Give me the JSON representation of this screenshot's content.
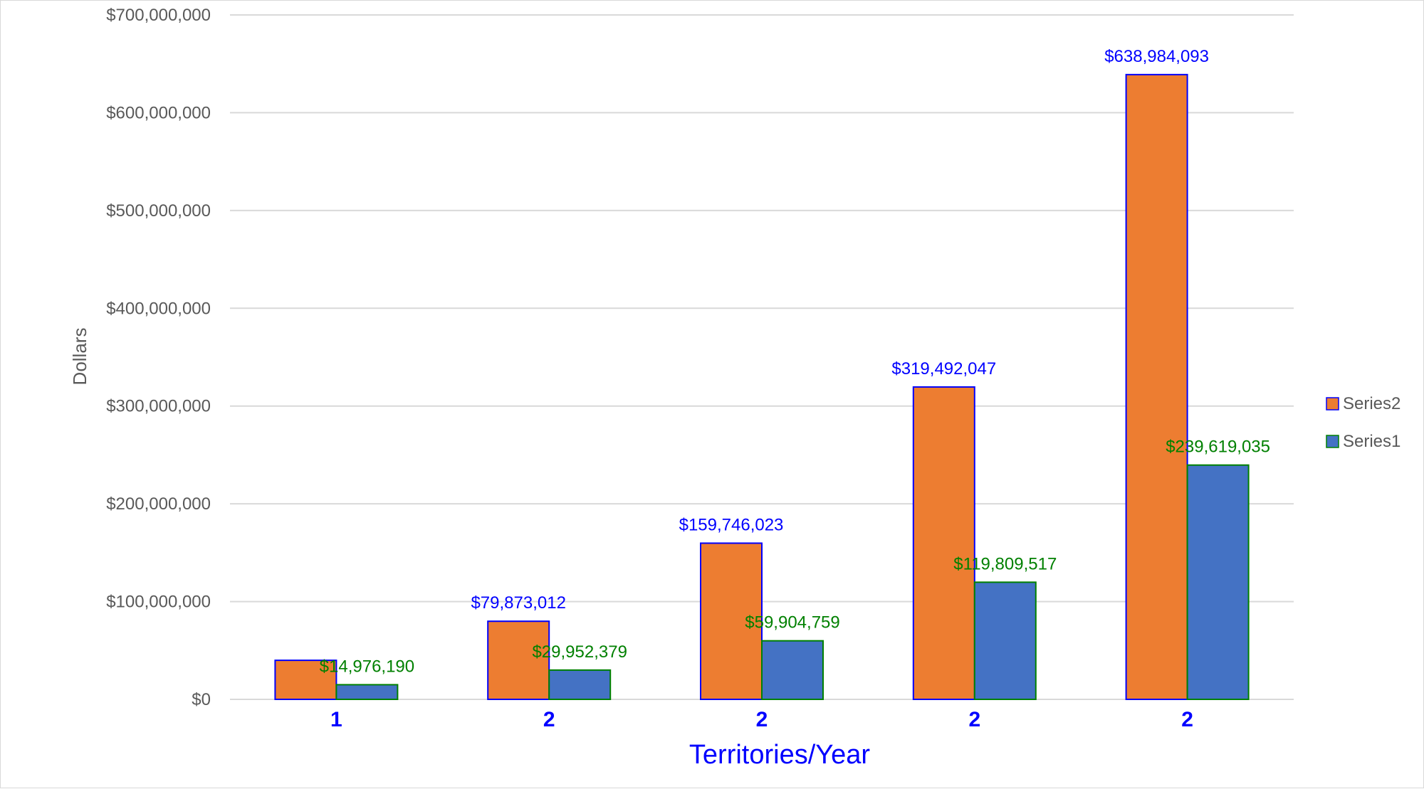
{
  "chart_data": {
    "type": "bar",
    "categories": [
      "1",
      "2",
      "2",
      "2",
      "2"
    ],
    "series": [
      {
        "name": "Series2",
        "values": [
          39936023,
          79873012,
          159746023,
          319492047,
          638984093
        ],
        "data_labels": [
          "",
          "$79,873,012",
          "$159,746,023",
          "$319,492,047",
          "$638,984,093"
        ],
        "fill": "#ed7d31",
        "border": "#0000ff",
        "label_color": "#0000ff"
      },
      {
        "name": "Series1",
        "values": [
          14976190,
          29952379,
          59904759,
          119809517,
          239619035
        ],
        "data_labels": [
          "$14,976,190",
          "$29,952,379",
          "$59,904,759",
          "$119,809,517",
          "$239,619,035"
        ],
        "fill": "#4472c4",
        "border": "#008000",
        "label_color": "#008000"
      }
    ],
    "xlabel": "Territories/Year",
    "ylabel": "Dollars",
    "ylim": [
      0,
      700000000
    ],
    "yticks": [
      0,
      100000000,
      200000000,
      300000000,
      400000000,
      500000000,
      600000000,
      700000000
    ],
    "ytick_labels": [
      "$0",
      "$100,000,000",
      "$200,000,000",
      "$300,000,000",
      "$400,000,000",
      "$500,000,000",
      "$600,000,000",
      "$700,000,000"
    ],
    "grid": true,
    "legend_position": "right",
    "legend_order": [
      "Series2",
      "Series1"
    ]
  }
}
